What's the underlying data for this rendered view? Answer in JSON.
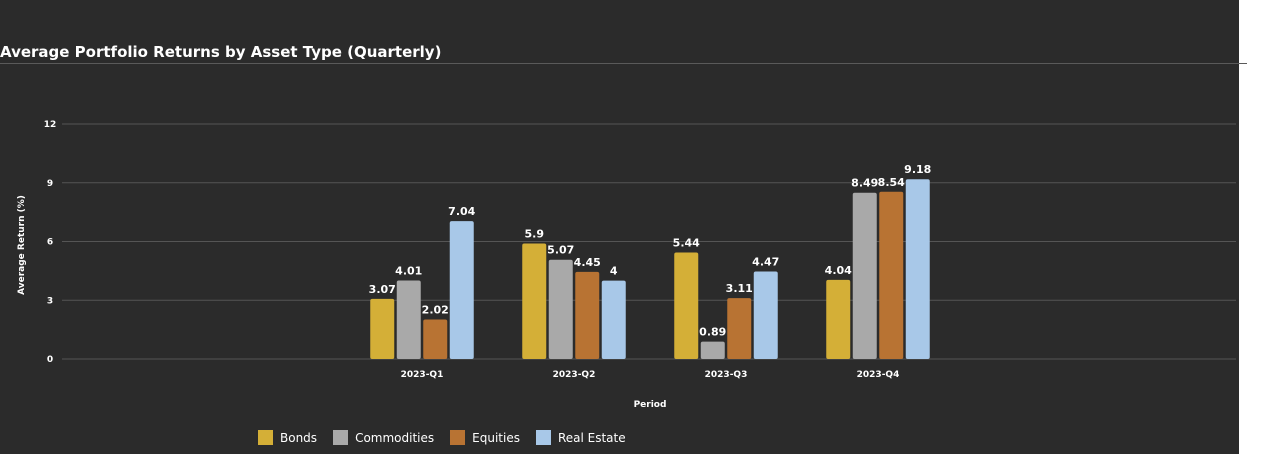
{
  "chart_data": {
    "type": "bar",
    "title": "Average Portfolio Returns by Asset Type (Quarterly)",
    "xlabel": "Period",
    "ylabel": "Average Return (%)",
    "categories": [
      "2023-Q1",
      "2023-Q2",
      "2023-Q3",
      "2023-Q4"
    ],
    "ylim": [
      0,
      12
    ],
    "yticks": [
      0,
      3,
      6,
      9,
      12
    ],
    "grid": true,
    "legend_position": "bottom",
    "series": [
      {
        "name": "Bonds",
        "color": "#d4af37",
        "values": [
          3.07,
          5.9,
          5.44,
          4.04
        ]
      },
      {
        "name": "Commodities",
        "color": "#a9a9a9",
        "values": [
          4.01,
          5.07,
          0.89,
          8.49
        ]
      },
      {
        "name": "Equities",
        "color": "#b87333",
        "values": [
          2.02,
          4.45,
          3.11,
          8.54
        ]
      },
      {
        "name": "Real Estate",
        "color": "#a8c8e8",
        "values": [
          7.04,
          4,
          4.47,
          9.18
        ]
      }
    ]
  }
}
